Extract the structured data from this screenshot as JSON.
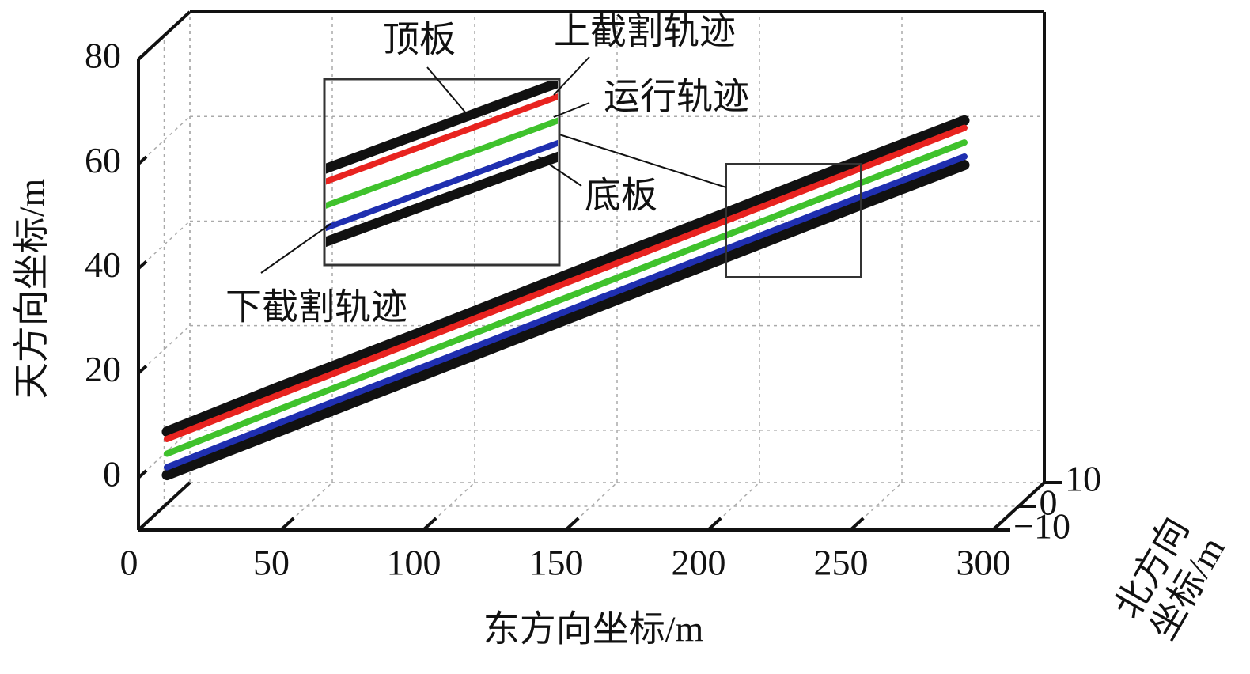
{
  "chart_data": {
    "type": "line3d",
    "xlabel": "东方向坐标/m",
    "zlabel": "天方向坐标/m",
    "ylabel": [
      "北方向",
      "坐标/m"
    ],
    "xlim": [
      0,
      300
    ],
    "xticks": [
      0,
      50,
      100,
      150,
      200,
      250,
      300
    ],
    "ylim": [
      -10,
      10
    ],
    "yticks": [
      10,
      0,
      {
        "value": -10,
        "label": "−10"
      }
    ],
    "zlim": [
      -10,
      80
    ],
    "zticks": [
      0,
      20,
      40,
      60,
      80
    ],
    "grid": true,
    "x": [
      10,
      50,
      100,
      150,
      200,
      250,
      290
    ],
    "series": [
      {
        "name": "顶板",
        "color": "#111111",
        "values": [
          8.8,
          17.5,
          28.0,
          38.7,
          49.3,
          60.0,
          68.3
        ]
      },
      {
        "name": "底板",
        "color": "#111111",
        "values": [
          0.5,
          9.0,
          19.6,
          30.2,
          40.8,
          51.4,
          59.8
        ]
      },
      {
        "name": "上截割轨迹",
        "color": "#e8231f",
        "values": [
          7.4,
          16.0,
          26.6,
          37.2,
          47.8,
          58.4,
          66.9
        ]
      },
      {
        "name": "运行轨迹",
        "color": "#3fc22c",
        "values": [
          4.6,
          13.2,
          23.8,
          34.4,
          45.0,
          55.6,
          64.1
        ]
      },
      {
        "name": "下截割轨迹",
        "color": "#1f2fb0",
        "values": [
          2.0,
          10.6,
          21.2,
          31.8,
          42.4,
          53.0,
          61.4
        ]
      }
    ]
  }
}
